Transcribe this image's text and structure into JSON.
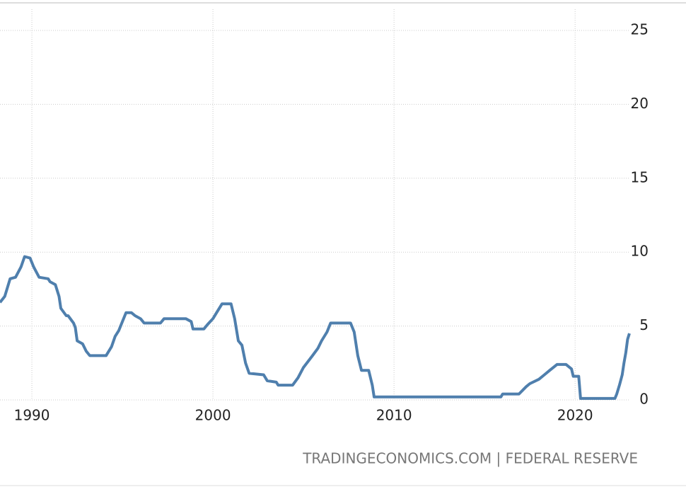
{
  "chart_data": {
    "type": "line",
    "source": "TRADINGECONOMICS.COM | FEDERAL RESERVE",
    "xlim": [
      1988.24,
      2023.0
    ],
    "xticks": [
      1990,
      2000,
      2010,
      2020
    ],
    "ylim": [
      0,
      25
    ],
    "yticks": [
      0,
      5,
      10,
      15,
      20,
      25
    ],
    "grid": true,
    "series": [
      {
        "color": "#4f7fad",
        "x": [
          1988.24,
          1988.5,
          1988.8,
          1989.1,
          1989.4,
          1989.6,
          1989.9,
          1990.1,
          1990.4,
          1990.9,
          1991.0,
          1991.3,
          1991.5,
          1991.6,
          1991.9,
          1992.0,
          1992.3,
          1992.4,
          1992.5,
          1992.8,
          1993.0,
          1993.2,
          1994.1,
          1994.4,
          1994.6,
          1994.8,
          1995.0,
          1995.2,
          1995.5,
          1995.7,
          1996.0,
          1996.2,
          1997.1,
          1997.3,
          1998.5,
          1998.8,
          1998.9,
          1999.5,
          1999.7,
          2000.0,
          2000.2,
          2000.5,
          2001.0,
          2001.2,
          2001.4,
          2001.6,
          2001.8,
          2002.0,
          2002.8,
          2003.0,
          2003.5,
          2003.6,
          2004.4,
          2004.7,
          2005.0,
          2005.5,
          2005.8,
          2006.0,
          2006.3,
          2006.5,
          2007.6,
          2007.8,
          2008.0,
          2008.2,
          2008.6,
          2008.8,
          2008.9,
          2015.9,
          2016.0,
          2016.9,
          2017.3,
          2017.5,
          2018.0,
          2018.3,
          2018.6,
          2019.0,
          2019.5,
          2019.8,
          2019.9,
          2020.2,
          2020.3,
          2022.2,
          2022.3,
          2022.45,
          2022.6,
          2022.7,
          2022.8,
          2022.9,
          2023.0
        ],
        "values": [
          6.6,
          7.0,
          8.2,
          8.3,
          9.0,
          9.7,
          9.6,
          9.0,
          8.3,
          8.2,
          8.0,
          7.8,
          7.0,
          6.2,
          5.7,
          5.7,
          5.2,
          4.9,
          4.0,
          3.8,
          3.3,
          3.0,
          3.0,
          3.6,
          4.3,
          4.7,
          5.3,
          5.9,
          5.9,
          5.7,
          5.5,
          5.2,
          5.2,
          5.5,
          5.5,
          5.3,
          4.8,
          4.8,
          5.1,
          5.5,
          5.9,
          6.5,
          6.5,
          5.5,
          4.0,
          3.7,
          2.5,
          1.8,
          1.7,
          1.3,
          1.2,
          1.0,
          1.0,
          1.5,
          2.2,
          3.0,
          3.5,
          4.0,
          4.6,
          5.2,
          5.2,
          4.6,
          3.0,
          2.0,
          2.0,
          1.0,
          0.2,
          0.2,
          0.4,
          0.4,
          0.9,
          1.1,
          1.4,
          1.7,
          2.0,
          2.4,
          2.4,
          2.1,
          1.6,
          1.6,
          0.1,
          0.1,
          0.4,
          1.0,
          1.7,
          2.5,
          3.2,
          4.1,
          4.5
        ]
      }
    ]
  }
}
